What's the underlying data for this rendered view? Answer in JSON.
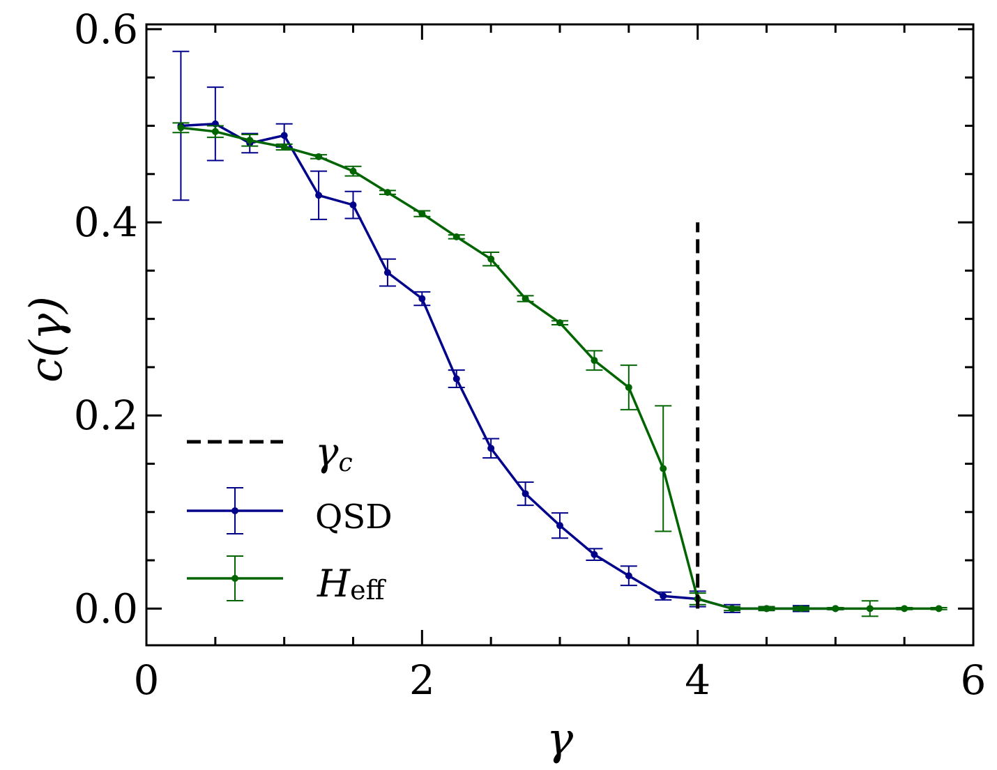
{
  "chart_data": {
    "type": "line",
    "xlabel": "γ",
    "ylabel": "c(γ)",
    "xlim": [
      0,
      6
    ],
    "ylim": [
      -0.038,
      0.605
    ],
    "x_ticks": [
      0,
      2,
      4,
      6
    ],
    "x_tick_labels": [
      "0",
      "2",
      "4",
      "6"
    ],
    "y_ticks": [
      0.0,
      0.2,
      0.4,
      0.6
    ],
    "y_tick_labels": [
      "0.0",
      "0.2",
      "0.4",
      "0.6"
    ],
    "grid": false,
    "legend_position": "lower-left",
    "critical_line": {
      "label": "γc",
      "x": 4.0,
      "y_range": [
        0.0,
        0.4
      ],
      "color": "#000000",
      "style": "dashed"
    },
    "series": [
      {
        "name": "QSD",
        "color": "#00008b",
        "x": [
          0.25,
          0.5,
          0.75,
          1.0,
          1.25,
          1.5,
          1.75,
          2.0,
          2.25,
          2.5,
          2.75,
          3.0,
          3.25,
          3.5,
          3.75,
          4.0,
          4.25,
          4.5,
          4.75,
          5.0
        ],
        "y": [
          0.5,
          0.502,
          0.482,
          0.49,
          0.428,
          0.418,
          0.348,
          0.321,
          0.238,
          0.166,
          0.119,
          0.086,
          0.056,
          0.034,
          0.013,
          0.01,
          0.0,
          0.0,
          0.0,
          0.0
        ],
        "err": [
          0.077,
          0.038,
          0.01,
          0.012,
          0.025,
          0.014,
          0.014,
          0.007,
          0.009,
          0.01,
          0.012,
          0.013,
          0.006,
          0.01,
          0.004,
          0.008,
          0.004,
          0.002,
          0.003,
          0.001
        ]
      },
      {
        "name": "H_eff",
        "color": "#006400",
        "x": [
          0.25,
          0.5,
          0.75,
          1.0,
          1.25,
          1.5,
          1.75,
          2.0,
          2.25,
          2.5,
          2.75,
          3.0,
          3.25,
          3.5,
          3.75,
          4.0,
          4.25,
          4.5,
          4.75,
          5.0,
          5.25,
          5.5,
          5.75
        ],
        "y": [
          0.498,
          0.494,
          0.485,
          0.478,
          0.468,
          0.453,
          0.431,
          0.409,
          0.385,
          0.362,
          0.321,
          0.296,
          0.257,
          0.229,
          0.145,
          0.01,
          0.0,
          0.0,
          0.0,
          0.0,
          0.0,
          0.0,
          0.0
        ],
        "err": [
          0.005,
          0.006,
          0.006,
          0.003,
          0.002,
          0.005,
          0.002,
          0.003,
          0.002,
          0.007,
          0.003,
          0.002,
          0.01,
          0.023,
          0.065,
          0.006,
          0.002,
          0.002,
          0.002,
          0.001,
          0.008,
          0.001,
          0.001
        ]
      }
    ]
  },
  "legend": {
    "gamma_c": {
      "main": "γ",
      "sub": "c"
    },
    "qsd": {
      "main": "QSD"
    },
    "heff": {
      "main": "H",
      "sub": "eff"
    }
  }
}
